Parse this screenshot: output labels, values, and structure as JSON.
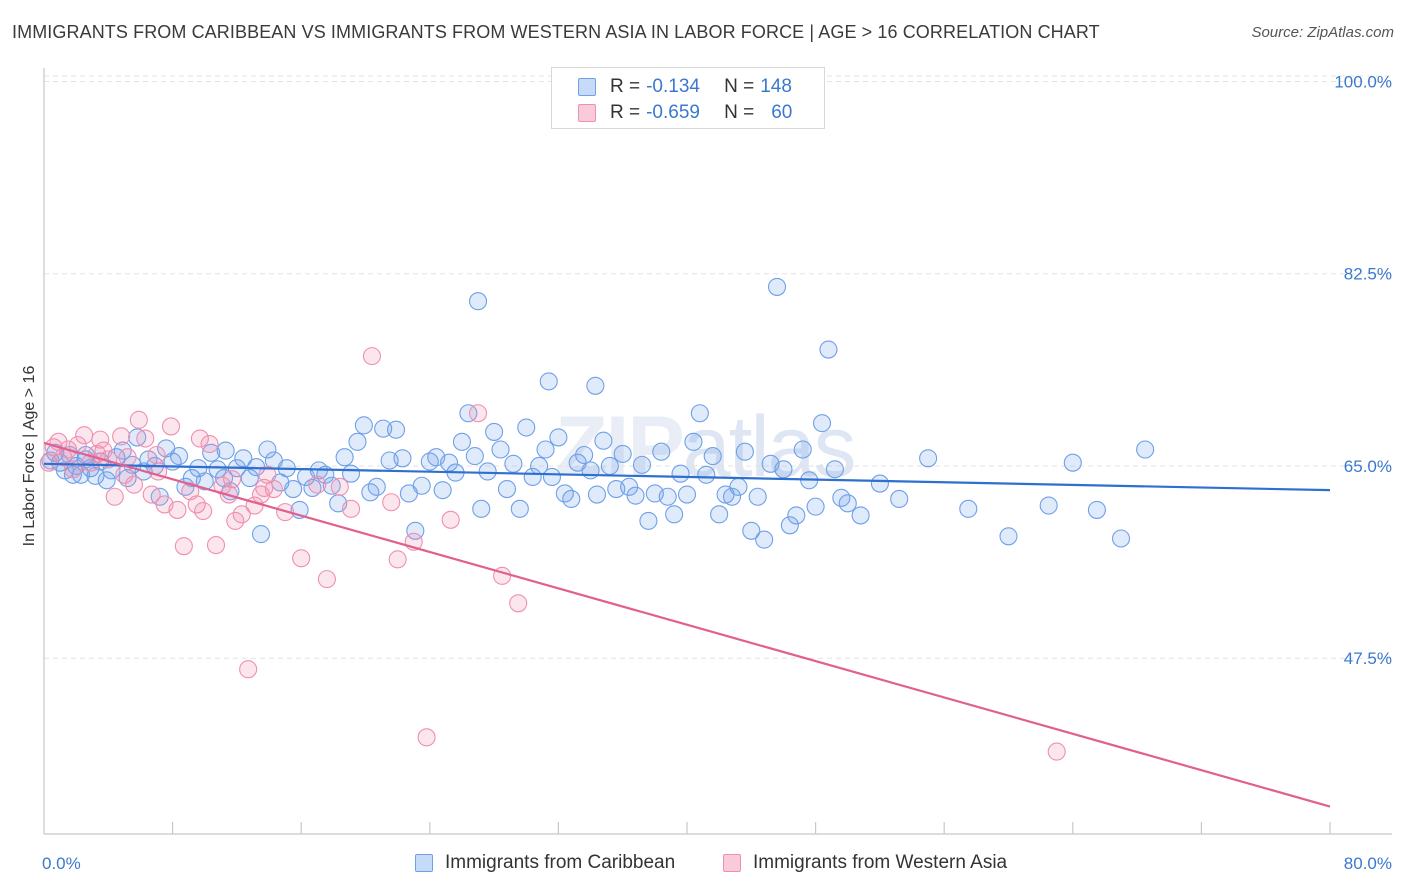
{
  "header": {
    "title": "IMMIGRANTS FROM CARIBBEAN VS IMMIGRANTS FROM WESTERN ASIA IN LABOR FORCE | AGE > 16 CORRELATION CHART",
    "source": "Source: ZipAtlas.com"
  },
  "watermark": {
    "zip": "ZIP",
    "atlas": "atlas"
  },
  "legend": {
    "rows": [
      {
        "r_label": "R =",
        "r_value": "-0.134",
        "n_label": "N =",
        "n_value": "148",
        "color": "#6fa0e8"
      },
      {
        "r_label": "R =",
        "r_value": "-0.659",
        "n_label": "N =",
        "n_value": "60",
        "color": "#f08fb0"
      }
    ]
  },
  "bottom_legend": {
    "items": [
      {
        "label": "Immigrants from Caribbean",
        "color": "#6fa0e8"
      },
      {
        "label": "Immigrants from Western Asia",
        "color": "#f08fb0"
      }
    ]
  },
  "chart_data": {
    "type": "scatter",
    "title": "IMMIGRANTS FROM CARIBBEAN VS IMMIGRANTS FROM WESTERN ASIA IN LABOR FORCE | AGE > 16 CORRELATION CHART",
    "xlabel": "",
    "ylabel": "In Labor Force | Age > 16",
    "xlim": [
      0,
      80
    ],
    "ylim": [
      31.5,
      100.5
    ],
    "x_tick_labels": [
      "0.0%",
      "80.0%"
    ],
    "y_ticks": [
      47.5,
      65.0,
      82.5,
      100.0
    ],
    "y_tick_labels": [
      "47.5%",
      "65.0%",
      "82.5%",
      "100.0%"
    ],
    "grid": true,
    "legend_position": "top-center",
    "series": [
      {
        "name": "Immigrants from Caribbean",
        "color": "#6fa0e8",
        "line_color": "#2f6fd0",
        "trend": {
          "x": [
            0,
            80
          ],
          "y": [
            65.2,
            62.8
          ]
        },
        "points": [
          [
            0.4,
            65.5
          ],
          [
            0.7,
            66.2
          ],
          [
            1.0,
            65.3
          ],
          [
            1.3,
            64.6
          ],
          [
            1.6,
            66.0
          ],
          [
            2.0,
            65.0
          ],
          [
            2.3,
            64.2
          ],
          [
            2.6,
            65.6
          ],
          [
            2.9,
            64.8
          ],
          [
            3.2,
            64.1
          ],
          [
            3.5,
            65.4
          ],
          [
            3.9,
            63.7
          ],
          [
            4.2,
            64.6
          ],
          [
            4.5,
            65.8
          ],
          [
            4.9,
            66.4
          ],
          [
            5.2,
            63.9
          ],
          [
            5.5,
            65.1
          ],
          [
            5.8,
            67.6
          ],
          [
            6.2,
            64.5
          ],
          [
            6.5,
            65.6
          ],
          [
            6.9,
            65.0
          ],
          [
            7.2,
            62.2
          ],
          [
            7.6,
            66.6
          ],
          [
            8.0,
            65.4
          ],
          [
            8.4,
            65.9
          ],
          [
            8.8,
            63.1
          ],
          [
            9.2,
            63.9
          ],
          [
            9.6,
            64.8
          ],
          [
            10.0,
            63.6
          ],
          [
            10.4,
            66.2
          ],
          [
            10.8,
            64.7
          ],
          [
            11.2,
            63.9
          ],
          [
            11.6,
            62.7
          ],
          [
            12.0,
            64.8
          ],
          [
            12.4,
            65.7
          ],
          [
            12.8,
            63.9
          ],
          [
            13.2,
            64.9
          ],
          [
            13.5,
            58.8
          ],
          [
            13.9,
            66.5
          ],
          [
            14.3,
            65.5
          ],
          [
            14.7,
            63.5
          ],
          [
            15.1,
            64.8
          ],
          [
            15.5,
            62.9
          ],
          [
            15.9,
            61.0
          ],
          [
            16.3,
            64.0
          ],
          [
            16.7,
            63.0
          ],
          [
            17.1,
            64.6
          ],
          [
            17.5,
            64.2
          ],
          [
            17.9,
            63.2
          ],
          [
            18.3,
            61.6
          ],
          [
            18.7,
            65.8
          ],
          [
            19.1,
            64.3
          ],
          [
            19.5,
            67.2
          ],
          [
            19.9,
            68.7
          ],
          [
            20.3,
            62.6
          ],
          [
            20.7,
            63.1
          ],
          [
            21.1,
            68.4
          ],
          [
            21.5,
            65.5
          ],
          [
            21.9,
            68.3
          ],
          [
            22.3,
            65.7
          ],
          [
            22.7,
            62.5
          ],
          [
            23.1,
            59.1
          ],
          [
            23.5,
            63.2
          ],
          [
            24.0,
            65.4
          ],
          [
            24.4,
            65.8
          ],
          [
            24.8,
            62.8
          ],
          [
            25.2,
            65.3
          ],
          [
            25.6,
            64.4
          ],
          [
            26.0,
            67.2
          ],
          [
            26.4,
            69.8
          ],
          [
            26.8,
            65.9
          ],
          [
            27.2,
            61.1
          ],
          [
            27.6,
            64.5
          ],
          [
            28.0,
            68.1
          ],
          [
            28.4,
            66.5
          ],
          [
            28.8,
            62.9
          ],
          [
            29.2,
            65.2
          ],
          [
            29.6,
            61.1
          ],
          [
            30.0,
            68.5
          ],
          [
            30.4,
            64.0
          ],
          [
            30.8,
            65.0
          ],
          [
            31.2,
            66.5
          ],
          [
            31.6,
            64.0
          ],
          [
            32.0,
            67.6
          ],
          [
            32.4,
            62.5
          ],
          [
            32.8,
            62.0
          ],
          [
            33.2,
            65.3
          ],
          [
            33.6,
            66.0
          ],
          [
            34.0,
            64.6
          ],
          [
            34.4,
            62.4
          ],
          [
            34.8,
            67.3
          ],
          [
            35.2,
            65.0
          ],
          [
            35.6,
            62.9
          ],
          [
            36.0,
            66.1
          ],
          [
            36.4,
            63.1
          ],
          [
            36.8,
            62.3
          ],
          [
            37.2,
            65.1
          ],
          [
            37.6,
            60.0
          ],
          [
            38.0,
            62.5
          ],
          [
            38.4,
            66.3
          ],
          [
            38.8,
            62.2
          ],
          [
            39.2,
            60.6
          ],
          [
            39.6,
            64.3
          ],
          [
            40.0,
            62.4
          ],
          [
            40.4,
            67.2
          ],
          [
            40.8,
            69.8
          ],
          [
            41.2,
            64.2
          ],
          [
            41.6,
            65.9
          ],
          [
            42.0,
            60.6
          ],
          [
            42.4,
            62.4
          ],
          [
            42.8,
            62.2
          ],
          [
            43.2,
            63.1
          ],
          [
            43.6,
            66.3
          ],
          [
            44.0,
            59.1
          ],
          [
            44.4,
            62.2
          ],
          [
            44.8,
            58.3
          ],
          [
            45.2,
            65.2
          ],
          [
            45.6,
            81.3
          ],
          [
            46.0,
            64.7
          ],
          [
            46.4,
            59.6
          ],
          [
            46.8,
            60.5
          ],
          [
            47.2,
            66.5
          ],
          [
            47.6,
            63.7
          ],
          [
            48.0,
            61.3
          ],
          [
            48.4,
            68.9
          ],
          [
            48.8,
            75.6
          ],
          [
            49.2,
            64.7
          ],
          [
            49.6,
            62.1
          ],
          [
            50.0,
            61.6
          ],
          [
            50.8,
            60.5
          ],
          [
            52.0,
            63.4
          ],
          [
            53.2,
            62.0
          ],
          [
            55.0,
            65.7
          ],
          [
            57.5,
            61.1
          ],
          [
            60.0,
            58.6
          ],
          [
            62.5,
            61.4
          ],
          [
            64.0,
            65.3
          ],
          [
            65.5,
            61.0
          ],
          [
            67.0,
            58.4
          ],
          [
            68.5,
            66.5
          ],
          [
            27.0,
            80.0
          ],
          [
            31.4,
            72.7
          ],
          [
            34.3,
            72.3
          ],
          [
            11.3,
            66.4
          ],
          [
            1.8,
            64.2
          ],
          [
            2.6,
            66.0
          ]
        ]
      },
      {
        "name": "Immigrants from Western Asia",
        "color": "#f08fb0",
        "line_color": "#e0608f",
        "trend": {
          "x": [
            0,
            80
          ],
          "y": [
            67.1,
            34.0
          ]
        },
        "points": [
          [
            0.3,
            65.3
          ],
          [
            0.6,
            66.7
          ],
          [
            0.9,
            67.2
          ],
          [
            1.2,
            65.8
          ],
          [
            1.5,
            66.5
          ],
          [
            1.8,
            64.7
          ],
          [
            2.1,
            66.9
          ],
          [
            2.5,
            67.8
          ],
          [
            2.9,
            65.3
          ],
          [
            3.3,
            66.1
          ],
          [
            3.7,
            66.4
          ],
          [
            4.0,
            65.6
          ],
          [
            4.4,
            62.2
          ],
          [
            4.8,
            67.7
          ],
          [
            5.2,
            65.8
          ],
          [
            5.6,
            63.3
          ],
          [
            5.9,
            69.2
          ],
          [
            6.3,
            67.5
          ],
          [
            6.7,
            62.4
          ],
          [
            7.1,
            64.5
          ],
          [
            7.5,
            61.5
          ],
          [
            7.9,
            68.6
          ],
          [
            8.3,
            61.0
          ],
          [
            8.7,
            57.7
          ],
          [
            9.1,
            62.7
          ],
          [
            9.5,
            61.5
          ],
          [
            9.9,
            60.9
          ],
          [
            10.3,
            67.0
          ],
          [
            10.7,
            57.8
          ],
          [
            11.1,
            63.2
          ],
          [
            11.5,
            62.4
          ],
          [
            11.9,
            60.0
          ],
          [
            12.3,
            60.6
          ],
          [
            12.7,
            46.5
          ],
          [
            13.1,
            61.4
          ],
          [
            13.5,
            62.4
          ],
          [
            13.9,
            64.2
          ],
          [
            14.3,
            62.9
          ],
          [
            15.0,
            60.8
          ],
          [
            16.0,
            56.6
          ],
          [
            17.0,
            63.3
          ],
          [
            17.6,
            54.7
          ],
          [
            18.4,
            63.1
          ],
          [
            19.1,
            61.1
          ],
          [
            20.4,
            75.0
          ],
          [
            21.6,
            61.7
          ],
          [
            22.0,
            56.5
          ],
          [
            23.0,
            58.1
          ],
          [
            23.8,
            40.3
          ],
          [
            25.3,
            60.1
          ],
          [
            27.0,
            69.8
          ],
          [
            28.5,
            55.0
          ],
          [
            29.5,
            52.5
          ],
          [
            3.5,
            67.4
          ],
          [
            5.0,
            64.2
          ],
          [
            7.0,
            66.0
          ],
          [
            9.7,
            67.5
          ],
          [
            11.7,
            63.8
          ],
          [
            13.7,
            63.0
          ],
          [
            63.0,
            39.0
          ]
        ]
      }
    ]
  }
}
